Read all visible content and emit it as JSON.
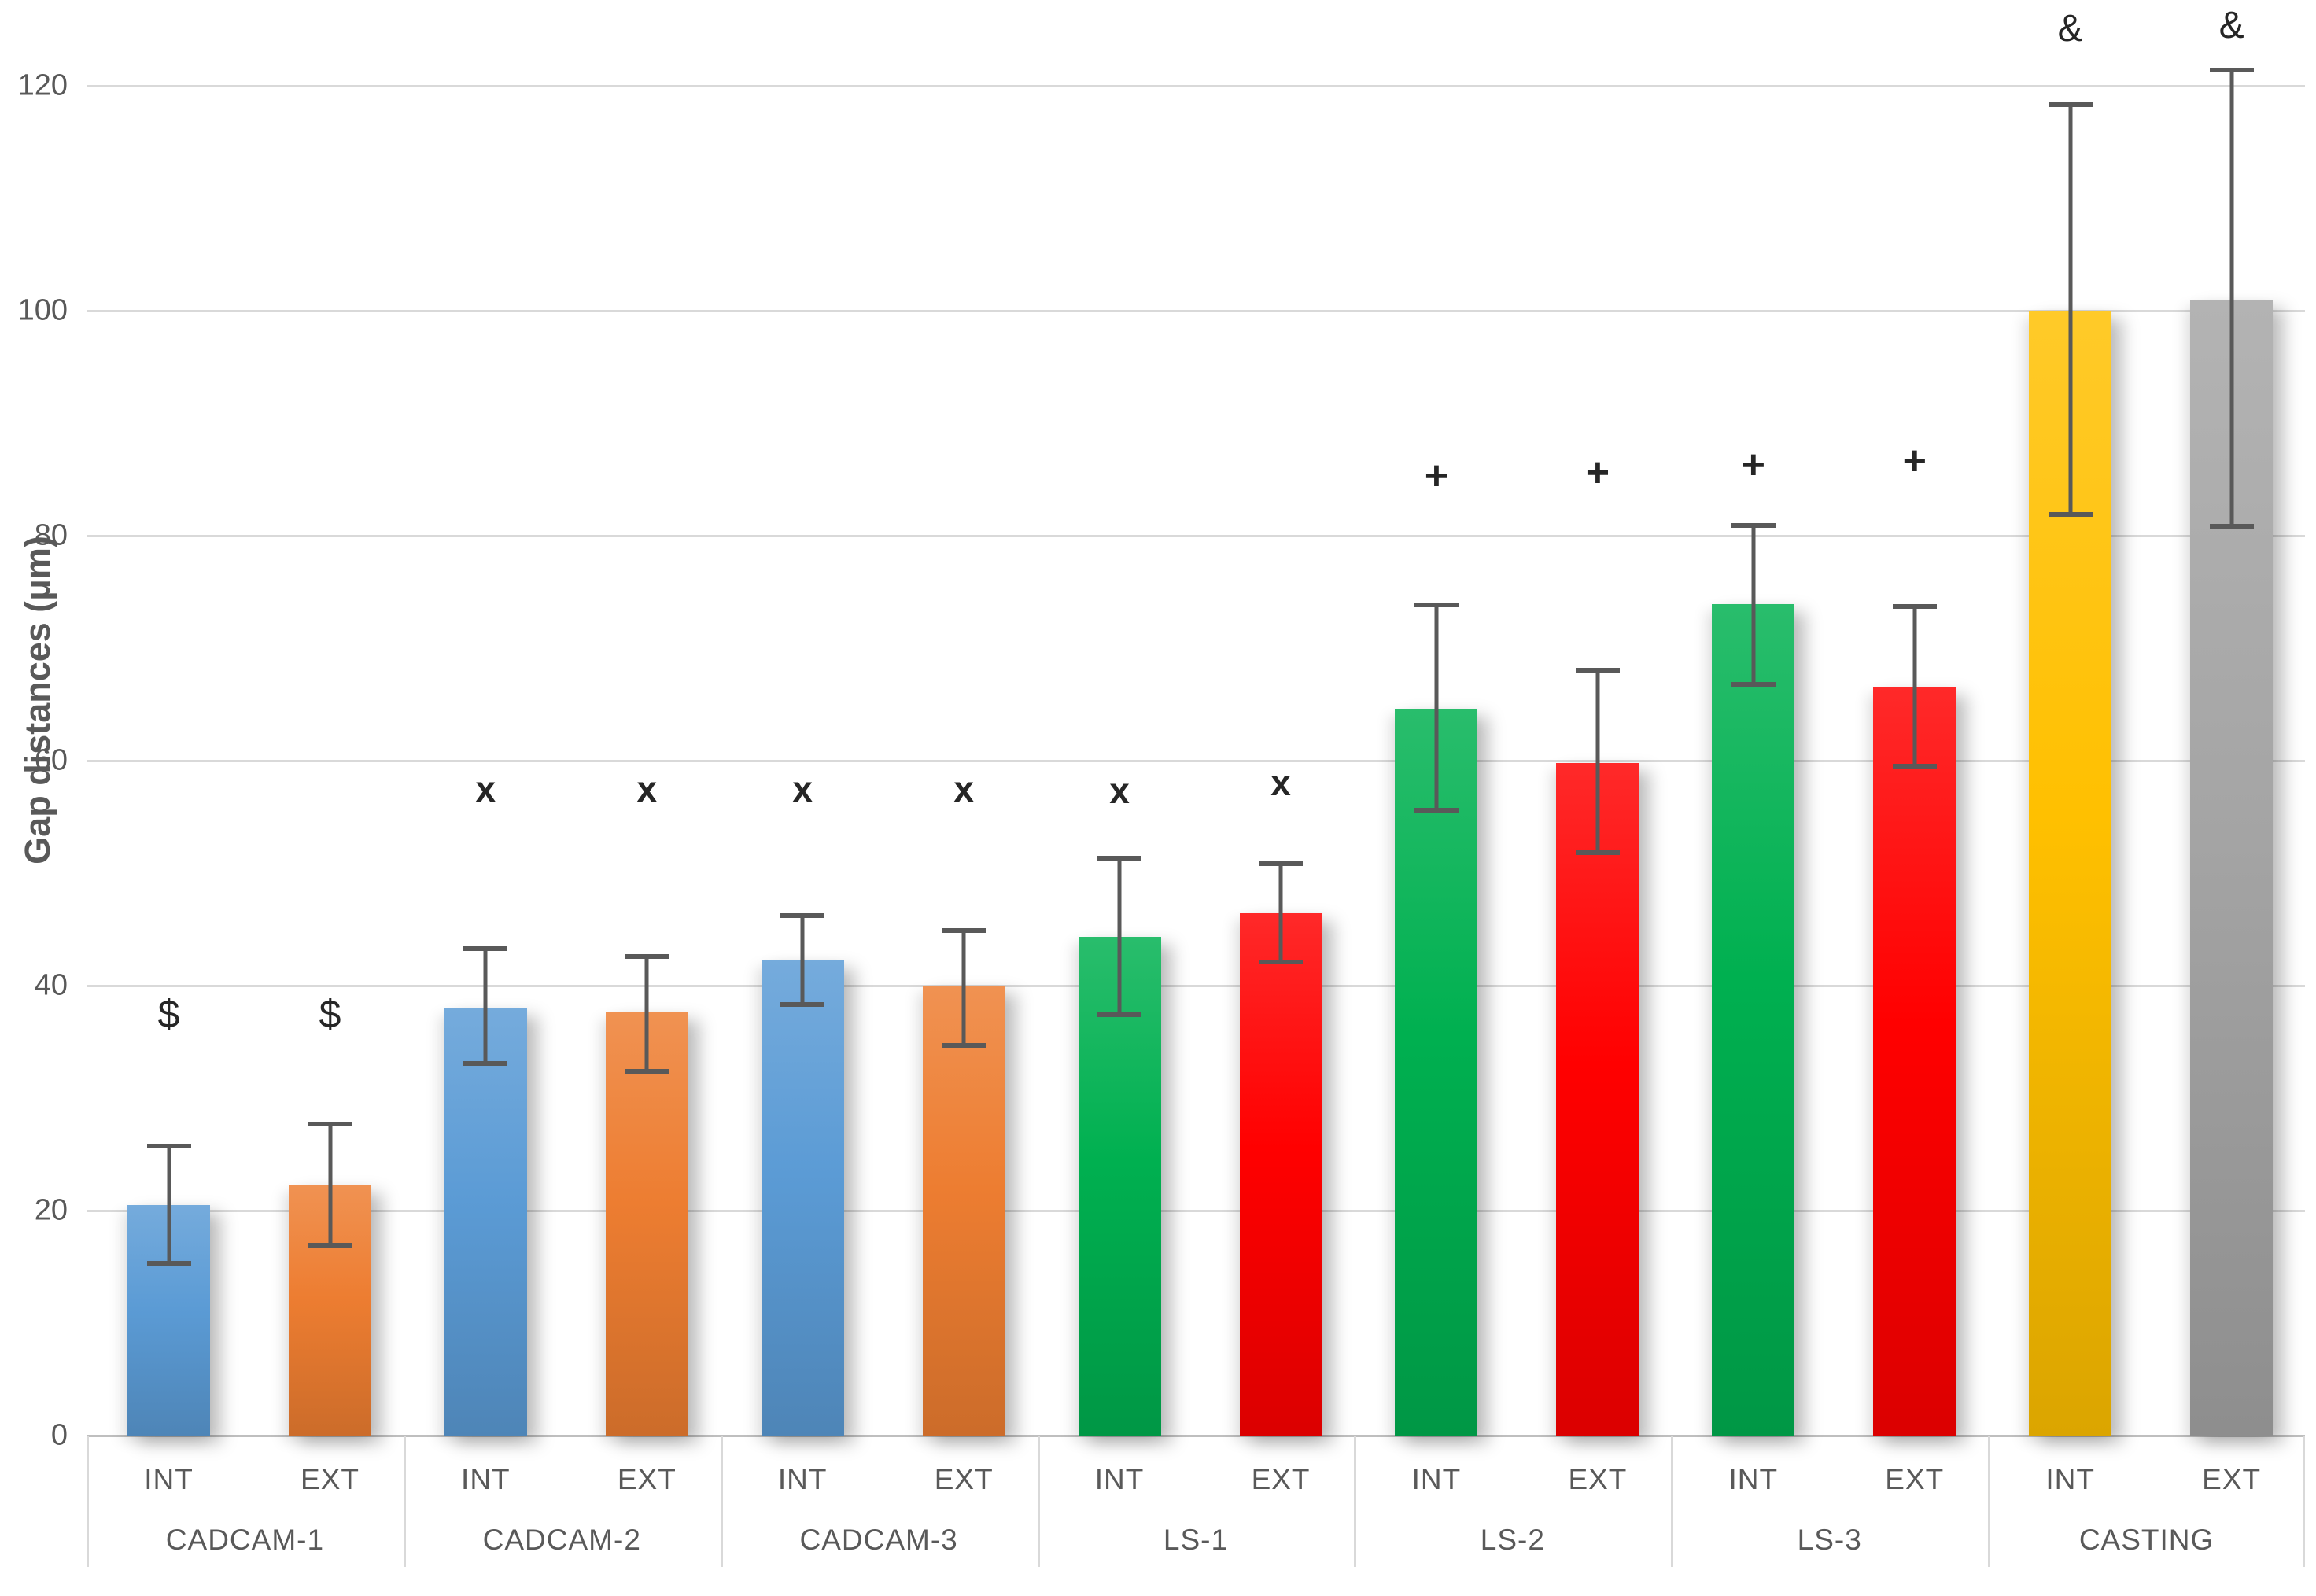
{
  "chart_data": {
    "type": "bar",
    "title": "",
    "xlabel": "",
    "ylabel": "Gap distances (μm)",
    "ylim": [
      0,
      127.6
    ],
    "y_ticks": [
      0,
      20,
      40,
      60,
      80,
      100,
      120
    ],
    "grid": "horizontal",
    "legend": "none",
    "subcategories": [
      "INT",
      "EXT"
    ],
    "palette": {
      "blue": "#5B9BD5",
      "orange": "#ED7D31",
      "green": "#00B050",
      "red": "#FF0000",
      "yellow": "#FFC000",
      "gray": "#A5A5A5"
    },
    "error_bar_color": "#595959",
    "gridline_color": "#D9D9D9",
    "text_color": "#595959",
    "annotation_color": "#262626",
    "groups": [
      {
        "name": "CADCAM-1",
        "bars": [
          {
            "label": "INT",
            "value": 20.5,
            "err_low": 15.3,
            "err_high": 25.7,
            "color": "blue",
            "annotation": "$",
            "annotation_y": 37.5
          },
          {
            "label": "EXT",
            "value": 22.2,
            "err_low": 16.9,
            "err_high": 27.7,
            "color": "orange",
            "annotation": "$",
            "annotation_y": 37.5
          }
        ]
      },
      {
        "name": "CADCAM-2",
        "bars": [
          {
            "label": "INT",
            "value": 38.0,
            "err_low": 33.1,
            "err_high": 43.3,
            "color": "blue",
            "annotation": "x",
            "annotation_y": 57.5
          },
          {
            "label": "EXT",
            "value": 37.6,
            "err_low": 32.4,
            "err_high": 42.6,
            "color": "orange",
            "annotation": "x",
            "annotation_y": 57.5
          }
        ]
      },
      {
        "name": "CADCAM-3",
        "bars": [
          {
            "label": "INT",
            "value": 42.2,
            "err_low": 38.3,
            "err_high": 46.2,
            "color": "blue",
            "annotation": "x",
            "annotation_y": 57.5
          },
          {
            "label": "EXT",
            "value": 40.0,
            "err_low": 34.7,
            "err_high": 44.9,
            "color": "orange",
            "annotation": "x",
            "annotation_y": 57.5
          }
        ]
      },
      {
        "name": "LS-1",
        "bars": [
          {
            "label": "INT",
            "value": 44.3,
            "err_low": 37.4,
            "err_high": 51.3,
            "color": "green",
            "annotation": "x",
            "annotation_y": 57.3
          },
          {
            "label": "EXT",
            "value": 46.4,
            "err_low": 42.1,
            "err_high": 50.8,
            "color": "red",
            "annotation": "x",
            "annotation_y": 58.0
          }
        ]
      },
      {
        "name": "LS-2",
        "bars": [
          {
            "label": "INT",
            "value": 64.6,
            "err_low": 55.6,
            "err_high": 73.8,
            "color": "green",
            "annotation": "+",
            "annotation_y": 85.3
          },
          {
            "label": "EXT",
            "value": 59.8,
            "err_low": 51.8,
            "err_high": 68.0,
            "color": "red",
            "annotation": "+",
            "annotation_y": 85.6
          }
        ]
      },
      {
        "name": "LS-3",
        "bars": [
          {
            "label": "INT",
            "value": 73.9,
            "err_low": 66.8,
            "err_high": 80.9,
            "color": "green",
            "annotation": "+",
            "annotation_y": 86.3
          },
          {
            "label": "EXT",
            "value": 66.5,
            "err_low": 59.5,
            "err_high": 73.7,
            "color": "red",
            "annotation": "+",
            "annotation_y": 86.6
          }
        ]
      },
      {
        "name": "CASTING",
        "bars": [
          {
            "label": "INT",
            "value": 100.0,
            "err_low": 81.9,
            "err_high": 118.3,
            "color": "yellow",
            "annotation": "&",
            "annotation_y": 125.0
          },
          {
            "label": "EXT",
            "value": 100.9,
            "err_low": 80.8,
            "err_high": 121.4,
            "color": "gray",
            "annotation": "&",
            "annotation_y": 125.3
          }
        ]
      }
    ]
  }
}
